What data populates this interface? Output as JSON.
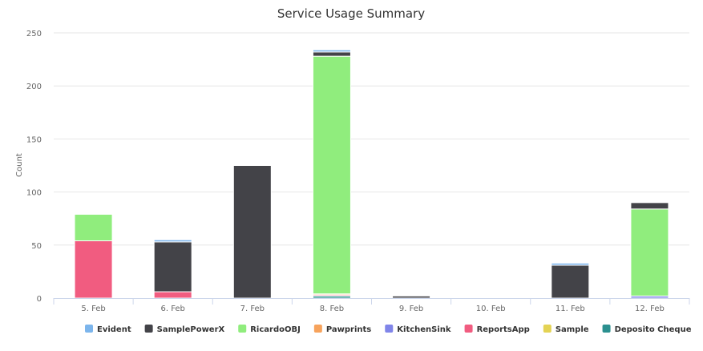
{
  "chart_data": {
    "type": "bar",
    "stacked": true,
    "title": "Service Usage Summary",
    "xlabel": "",
    "ylabel": "Count",
    "ylim": [
      0,
      250
    ],
    "yticks": [
      0,
      50,
      100,
      150,
      200,
      250
    ],
    "grid": true,
    "legend_position": "bottom",
    "categories": [
      "5. Feb",
      "6. Feb",
      "7. Feb",
      "8. Feb",
      "9. Feb",
      "10. Feb",
      "11. Feb",
      "12. Feb"
    ],
    "series": [
      {
        "name": "Evident",
        "color": "#7cb5ec",
        "values": [
          0,
          2,
          0,
          2,
          0,
          0,
          2,
          0
        ]
      },
      {
        "name": "SamplePowerX",
        "color": "#434348",
        "values": [
          0,
          47,
          125,
          4,
          2,
          0,
          31,
          6
        ]
      },
      {
        "name": "RicardoOBJ",
        "color": "#90ed7d",
        "values": [
          25,
          0,
          0,
          224,
          0,
          0,
          0,
          82
        ]
      },
      {
        "name": "Pawprints",
        "color": "#f7a35c",
        "values": [
          0,
          0,
          0,
          1,
          0,
          0,
          0,
          0
        ]
      },
      {
        "name": "KitchenSink",
        "color": "#8085e9",
        "values": [
          0,
          0,
          0,
          0,
          0,
          0,
          0,
          2
        ]
      },
      {
        "name": "ReportsApp",
        "color": "#f15c80",
        "values": [
          54,
          6,
          0,
          1,
          0,
          0,
          0,
          0
        ]
      },
      {
        "name": "Sample",
        "color": "#e4d354",
        "values": [
          0,
          0,
          0,
          0,
          0,
          0,
          0,
          0
        ]
      },
      {
        "name": "Deposito Cheque",
        "color": "#2b908f",
        "values": [
          0,
          0,
          0,
          2,
          0,
          0,
          0,
          0
        ]
      }
    ]
  }
}
